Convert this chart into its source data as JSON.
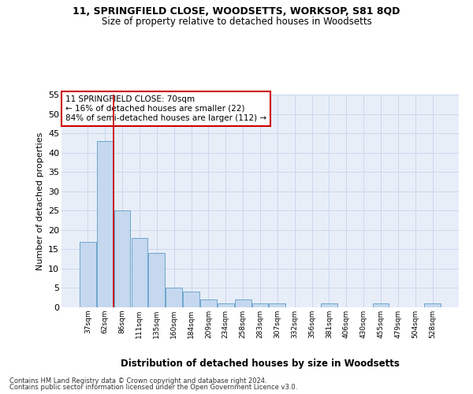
{
  "title1": "11, SPRINGFIELD CLOSE, WOODSETTS, WORKSOP, S81 8QD",
  "title2": "Size of property relative to detached houses in Woodsetts",
  "xlabel": "Distribution of detached houses by size in Woodsetts",
  "ylabel": "Number of detached properties",
  "categories": [
    "37sqm",
    "62sqm",
    "86sqm",
    "111sqm",
    "135sqm",
    "160sqm",
    "184sqm",
    "209sqm",
    "234sqm",
    "258sqm",
    "283sqm",
    "307sqm",
    "332sqm",
    "356sqm",
    "381sqm",
    "406sqm",
    "430sqm",
    "455sqm",
    "479sqm",
    "504sqm",
    "528sqm"
  ],
  "values": [
    17,
    43,
    25,
    18,
    14,
    5,
    4,
    2,
    1,
    2,
    1,
    1,
    0,
    0,
    1,
    0,
    0,
    1,
    0,
    0,
    1
  ],
  "bar_color": "#c5d8ef",
  "bar_edge_color": "#6ea6cc",
  "grid_color": "#c8d8ec",
  "vline_color": "#cc0000",
  "annotation_lines": [
    "11 SPRINGFIELD CLOSE: 70sqm",
    "← 16% of detached houses are smaller (22)",
    "84% of semi-detached houses are larger (112) →"
  ],
  "annotation_box_color": "#ffffff",
  "annotation_box_edge": "#cc0000",
  "ylim": [
    0,
    55
  ],
  "yticks": [
    0,
    5,
    10,
    15,
    20,
    25,
    30,
    35,
    40,
    45,
    50,
    55
  ],
  "footnote1": "Contains HM Land Registry data © Crown copyright and database right 2024.",
  "footnote2": "Contains public sector information licensed under the Open Government Licence v3.0.",
  "background_color": "#e8eef8",
  "fig_bg_color": "#ffffff"
}
